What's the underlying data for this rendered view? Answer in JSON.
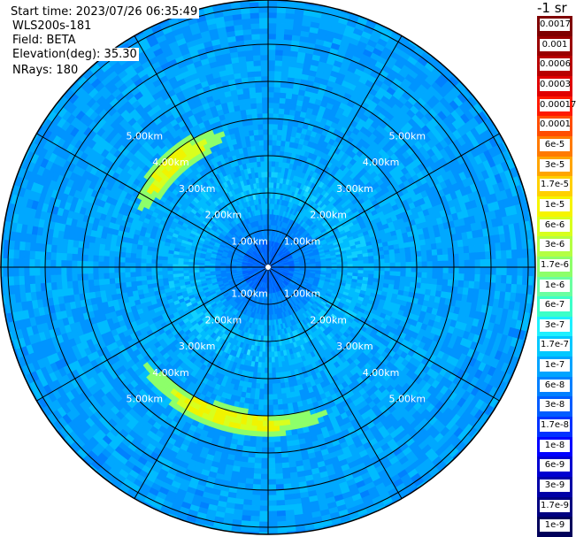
{
  "header": {
    "start_time": "Start time: 2023/07/26 06:35:49",
    "instrument": "WLS200s-181",
    "field": "Field: BETA",
    "elevation": "Elevation(deg): 35.30",
    "nrays": "NRays: 180"
  },
  "colorbar": {
    "unit": "-1 sr",
    "entries": [
      {
        "label": "0.0017",
        "color": "#7f0000"
      },
      {
        "label": "0.001",
        "color": "#9a0000"
      },
      {
        "label": "0.0006",
        "color": "#b80000"
      },
      {
        "label": "0.0003",
        "color": "#e00000"
      },
      {
        "label": "0.00017",
        "color": "#ff1a00"
      },
      {
        "label": "0.0001",
        "color": "#ff4d00"
      },
      {
        "label": "6e-5",
        "color": "#ff7a00"
      },
      {
        "label": "3e-5",
        "color": "#ffa500"
      },
      {
        "label": "1.7e-5",
        "color": "#ffd000"
      },
      {
        "label": "1e-5",
        "color": "#f6f400"
      },
      {
        "label": "6e-6",
        "color": "#d8ff1e"
      },
      {
        "label": "3e-6",
        "color": "#b4ff43"
      },
      {
        "label": "1.7e-6",
        "color": "#8dff6a"
      },
      {
        "label": "1e-6",
        "color": "#6affa0"
      },
      {
        "label": "6e-7",
        "color": "#3cffc8"
      },
      {
        "label": "3e-7",
        "color": "#1ef0ff"
      },
      {
        "label": "1.7e-7",
        "color": "#00c8ff"
      },
      {
        "label": "1e-7",
        "color": "#00a4ff"
      },
      {
        "label": "6e-8",
        "color": "#0080ff"
      },
      {
        "label": "3e-8",
        "color": "#005cff"
      },
      {
        "label": "1.7e-8",
        "color": "#0032ff"
      },
      {
        "label": "1e-8",
        "color": "#0000ff"
      },
      {
        "label": "6e-9",
        "color": "#0000d0"
      },
      {
        "label": "3e-9",
        "color": "#0000a6"
      },
      {
        "label": "1.7e-9",
        "color": "#000080"
      },
      {
        "label": "1e-9",
        "color": "#00005a"
      }
    ]
  },
  "rings": {
    "labels": [
      "1.00km",
      "2.00km",
      "3.00km",
      "4.00km",
      "5.00km"
    ]
  }
}
